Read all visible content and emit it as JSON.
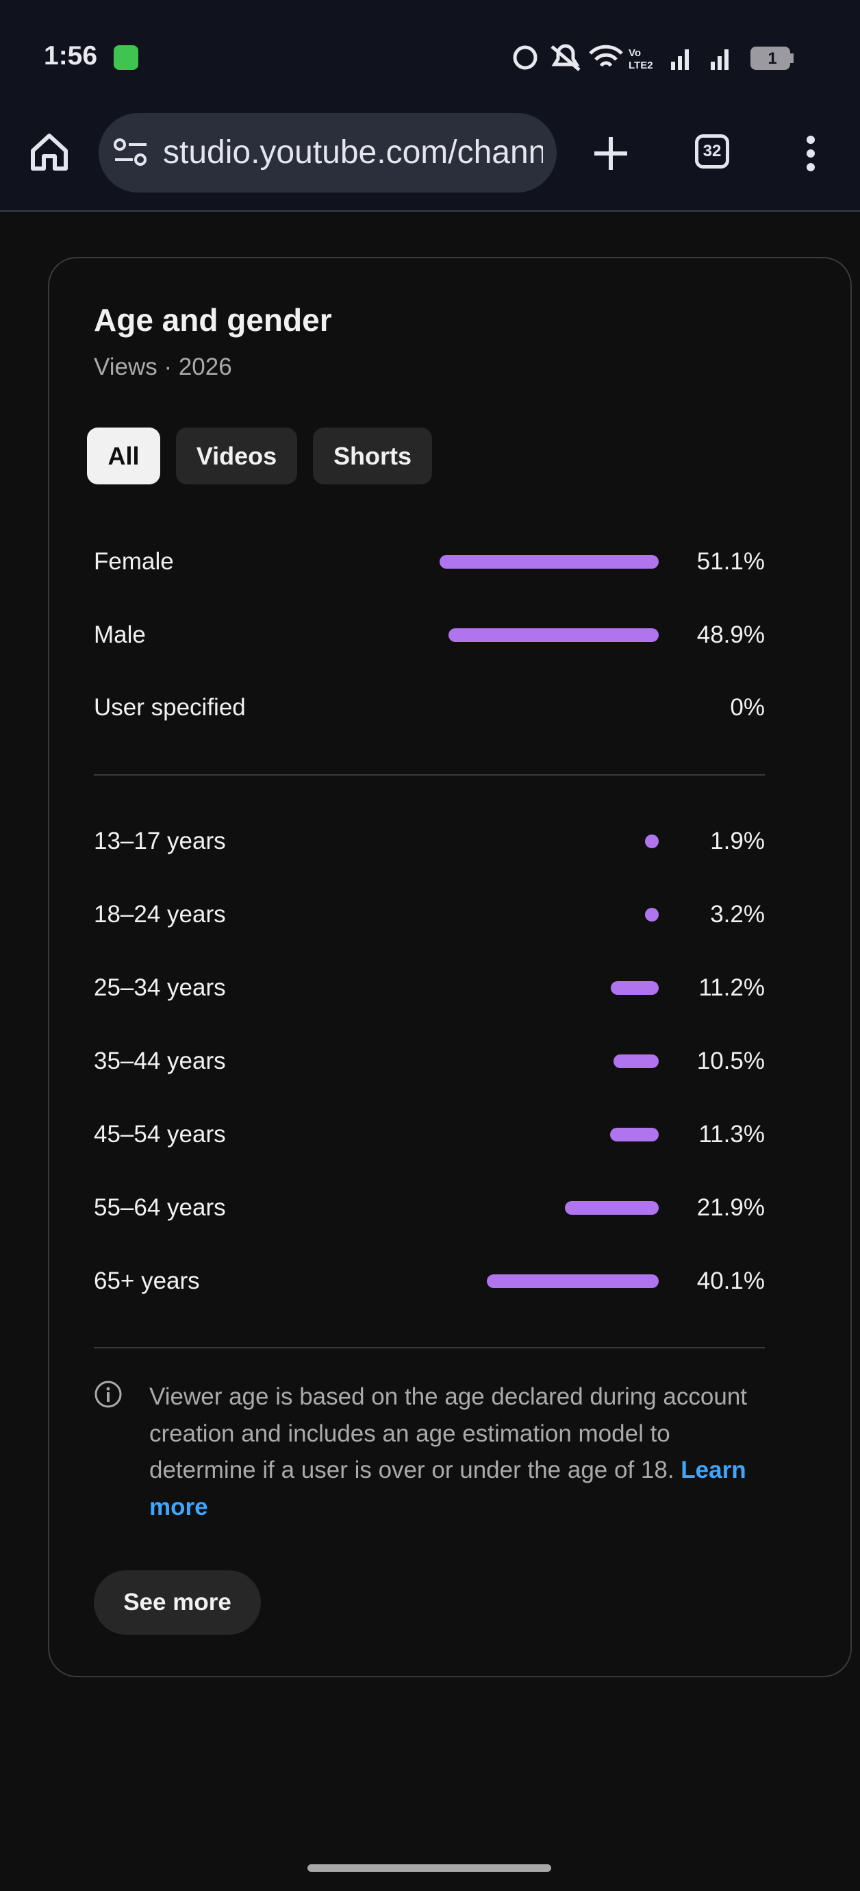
{
  "status_bar": {
    "time": "1:56",
    "battery": "1"
  },
  "browser": {
    "url": "studio.youtube.com/chann",
    "tab_count": "32"
  },
  "card": {
    "title": "Age and gender",
    "subtitle": "Views · 2026",
    "tabs": [
      "All",
      "Videos",
      "Shorts"
    ],
    "gender": {
      "categories": [
        "Female",
        "Male",
        "User specified"
      ],
      "values": [
        51.1,
        48.9,
        0
      ],
      "value_labels": [
        "51.1%",
        "48.9%",
        "0%"
      ],
      "color": "#b074ee"
    },
    "age": {
      "categories": [
        "13–17 years",
        "18–24 years",
        "25–34 years",
        "35–44 years",
        "45–54 years",
        "55–64 years",
        "65+ years"
      ],
      "values": [
        1.9,
        3.2,
        11.2,
        10.5,
        11.3,
        21.9,
        40.1
      ],
      "value_labels": [
        "1.9%",
        "3.2%",
        "11.2%",
        "10.5%",
        "11.3%",
        "21.9%",
        "40.1%"
      ],
      "color": "#b074ee"
    },
    "note": {
      "text": "Viewer age is based on the age declared during account creation and includes an age estimation model to determine if a user is over or under the age of 18.",
      "link": "Learn more"
    },
    "button": "See more"
  }
}
